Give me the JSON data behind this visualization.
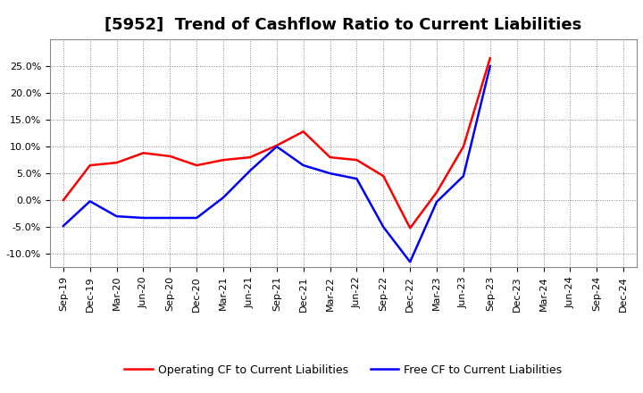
{
  "title": "[5952]  Trend of Cashflow Ratio to Current Liabilities",
  "x_labels": [
    "Sep-19",
    "Dec-19",
    "Mar-20",
    "Jun-20",
    "Sep-20",
    "Dec-20",
    "Mar-21",
    "Jun-21",
    "Sep-21",
    "Dec-21",
    "Mar-22",
    "Jun-22",
    "Sep-22",
    "Dec-22",
    "Mar-23",
    "Jun-23",
    "Sep-23",
    "Dec-23",
    "Mar-24",
    "Jun-24",
    "Sep-24",
    "Dec-24"
  ],
  "operating_cf": [
    0.0,
    6.5,
    7.0,
    8.8,
    8.2,
    6.5,
    7.5,
    8.0,
    10.2,
    12.8,
    8.0,
    7.5,
    4.5,
    -5.2,
    1.5,
    10.0,
    26.5,
    null,
    null,
    null,
    null,
    null
  ],
  "free_cf": [
    -4.8,
    -0.2,
    -3.0,
    -3.3,
    -3.3,
    -3.3,
    0.5,
    5.5,
    10.0,
    6.5,
    5.0,
    4.0,
    -5.0,
    -11.5,
    -0.3,
    4.5,
    25.0,
    null,
    null,
    null,
    null,
    null
  ],
  "operating_color": "#FF0000",
  "free_color": "#0000FF",
  "ylim": [
    -12.5,
    30.0
  ],
  "yticks": [
    -10.0,
    -5.0,
    0.0,
    5.0,
    10.0,
    15.0,
    20.0,
    25.0
  ],
  "background_color": "#FFFFFF",
  "grid_color": "#888888",
  "legend_op": "Operating CF to Current Liabilities",
  "legend_free": "Free CF to Current Liabilities",
  "title_fontsize": 13,
  "tick_fontsize": 8,
  "legend_fontsize": 9
}
